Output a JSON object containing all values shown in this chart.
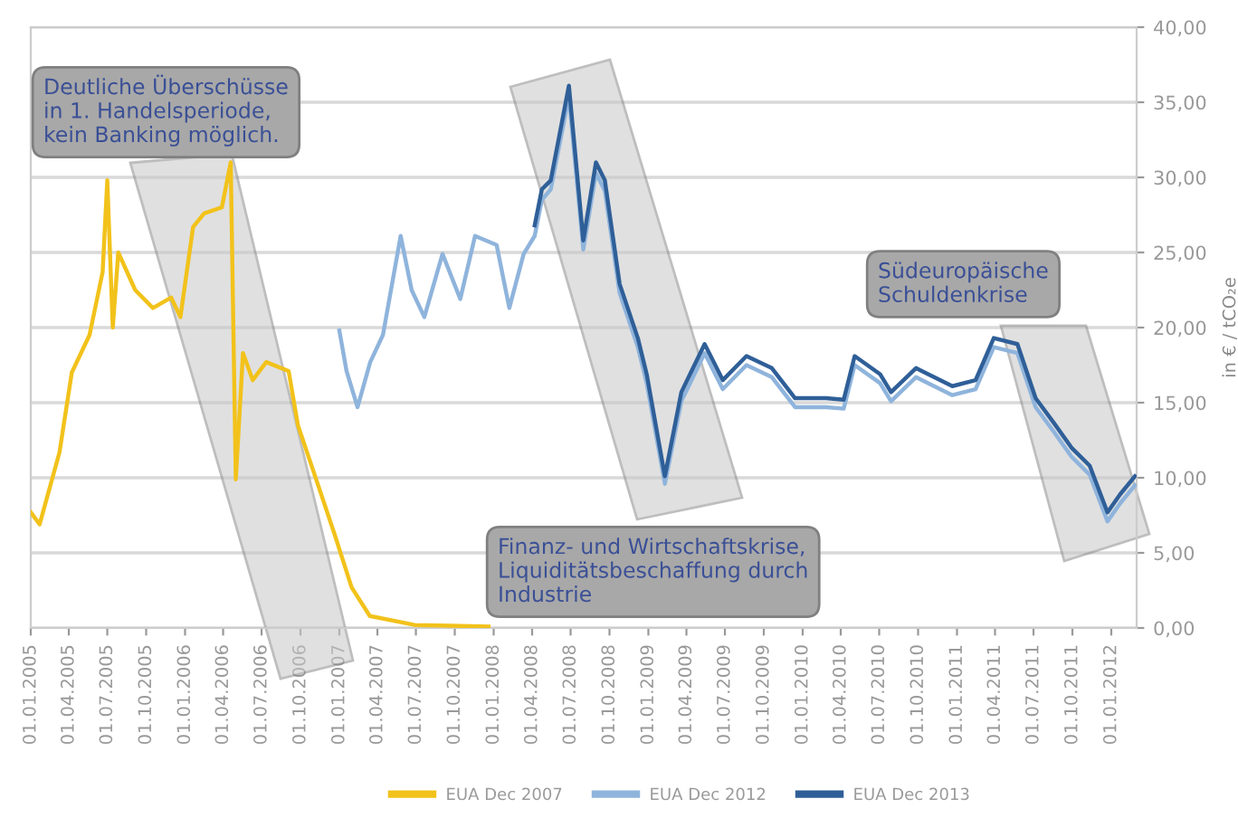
{
  "chart_data": {
    "type": "line",
    "ylabel": "in € / tCO₂e",
    "xlim": [
      "2005-01-01",
      "2012-03-01"
    ],
    "ylim": [
      0,
      40
    ],
    "yticks": [
      {
        "value": 0,
        "label": "0,00"
      },
      {
        "value": 5,
        "label": "5,00"
      },
      {
        "value": 10,
        "label": "10,00"
      },
      {
        "value": 15,
        "label": "15,00"
      },
      {
        "value": 20,
        "label": "20,00"
      },
      {
        "value": 25,
        "label": "25,00"
      },
      {
        "value": 30,
        "label": "30,00"
      },
      {
        "value": 35,
        "label": "35,00"
      },
      {
        "value": 40,
        "label": "40,00"
      }
    ],
    "xticks": [
      {
        "value": "2005-01-01",
        "label": "01.01.2005"
      },
      {
        "value": "2005-04-01",
        "label": "01.04.2005"
      },
      {
        "value": "2005-07-01",
        "label": "01.07.2005"
      },
      {
        "value": "2005-10-01",
        "label": "01.10.2005"
      },
      {
        "value": "2006-01-01",
        "label": "01.01.2006"
      },
      {
        "value": "2006-04-01",
        "label": "01.04.2006"
      },
      {
        "value": "2006-07-01",
        "label": "01.07.2006"
      },
      {
        "value": "2006-10-01",
        "label": "01.10.2006"
      },
      {
        "value": "2007-01-01",
        "label": "01.01.2007"
      },
      {
        "value": "2007-04-01",
        "label": "01.04.2007"
      },
      {
        "value": "2007-07-01",
        "label": "01.07.2007"
      },
      {
        "value": "2007-10-01",
        "label": "01.10.2007"
      },
      {
        "value": "2008-01-01",
        "label": "01.01.2008"
      },
      {
        "value": "2008-04-01",
        "label": "01.04.2008"
      },
      {
        "value": "2008-07-01",
        "label": "01.07.2008"
      },
      {
        "value": "2008-10-01",
        "label": "01.10.2008"
      },
      {
        "value": "2009-01-01",
        "label": "01.01.2009"
      },
      {
        "value": "2009-04-01",
        "label": "01.04.2009"
      },
      {
        "value": "2009-07-01",
        "label": "01.07.2009"
      },
      {
        "value": "2009-10-01",
        "label": "01.10.2009"
      },
      {
        "value": "2010-01-01",
        "label": "01.01.2010"
      },
      {
        "value": "2010-04-01",
        "label": "01.04.2010"
      },
      {
        "value": "2010-07-01",
        "label": "01.07.2010"
      },
      {
        "value": "2010-10-01",
        "label": "01.10.2010"
      },
      {
        "value": "2011-01-01",
        "label": "01.01.2011"
      },
      {
        "value": "2011-04-01",
        "label": "01.04.2011"
      },
      {
        "value": "2011-07-01",
        "label": "01.07.2011"
      },
      {
        "value": "2011-10-01",
        "label": "01.10.2011"
      },
      {
        "value": "2012-01-01",
        "label": "01.01.2012"
      }
    ],
    "grid": "y",
    "legend": "bottom",
    "line_style": "solid",
    "series": [
      {
        "name": "EUA Dec 2007",
        "color": "#f2c21b",
        "x": [
          "2005-01-01",
          "2005-01-22",
          "2005-03-10",
          "2005-04-08",
          "2005-05-20",
          "2005-06-20",
          "2005-07-01",
          "2005-07-14",
          "2005-07-27",
          "2005-09-05",
          "2005-10-17",
          "2005-11-29",
          "2005-12-21",
          "2006-01-20",
          "2006-02-15",
          "2006-03-29",
          "2006-04-19",
          "2006-05-01",
          "2006-05-18",
          "2006-06-10",
          "2006-07-12",
          "2006-09-03",
          "2006-09-25",
          "2006-11-07",
          "2006-12-20",
          "2007-01-30",
          "2007-03-14",
          "2007-06-28",
          "2007-12-20"
        ],
        "values": [
          7.7,
          6.9,
          11.7,
          17,
          19.5,
          23.7,
          29.8,
          20,
          25,
          22.5,
          21.3,
          22,
          20.7,
          26.7,
          27.6,
          28,
          31,
          9.9,
          18.3,
          16.5,
          17.7,
          17.1,
          13.5,
          9.9,
          6.3,
          2.7,
          0.8,
          0.2,
          0.1
        ]
      },
      {
        "name": "EUA Dec 2012",
        "color": "#8fb4dc",
        "x": [
          "2007-01-01",
          "2007-01-18",
          "2007-02-13",
          "2007-03-15",
          "2007-04-14",
          "2007-05-26",
          "2007-06-21",
          "2007-07-21",
          "2007-09-02",
          "2007-10-14",
          "2007-11-18",
          "2008-01-08",
          "2008-02-07",
          "2008-03-12",
          "2008-04-07",
          "2008-04-24",
          "2008-05-15",
          "2008-06-27",
          "2008-07-31",
          "2008-08-30",
          "2008-09-20",
          "2008-10-25",
          "2008-12-07",
          "2008-12-28",
          "2009-02-09",
          "2009-03-20",
          "2009-05-14",
          "2009-06-26",
          "2009-08-21",
          "2009-10-20",
          "2009-12-14",
          "2010-02-25",
          "2010-04-08",
          "2010-05-04",
          "2010-07-03",
          "2010-07-29",
          "2010-09-26",
          "2010-12-21",
          "2011-02-14",
          "2011-03-29",
          "2011-05-24",
          "2011-07-06",
          "2011-08-17",
          "2011-09-29",
          "2011-11-11",
          "2011-12-23",
          "2012-01-22",
          "2012-02-26"
        ],
        "values": [
          19.8,
          17.1,
          14.7,
          17.7,
          19.5,
          26.1,
          22.5,
          20.7,
          24.9,
          21.9,
          26.1,
          25.5,
          21.3,
          24.9,
          26.1,
          28.5,
          29.2,
          35.4,
          25.2,
          30.3,
          29.1,
          22.3,
          18.7,
          16.3,
          9.6,
          15.1,
          18.3,
          15.9,
          17.5,
          16.7,
          14.7,
          14.7,
          14.6,
          17.5,
          16.3,
          15.1,
          16.7,
          15.5,
          15.9,
          18.7,
          18.3,
          14.7,
          13.1,
          11.4,
          10.2,
          7.1,
          8.3,
          9.5
        ]
      },
      {
        "name": "EUA Dec 2013",
        "color": "#2f5f98",
        "x": [
          "2008-04-07",
          "2008-04-24",
          "2008-05-15",
          "2008-06-27",
          "2008-07-31",
          "2008-08-30",
          "2008-09-20",
          "2008-10-25",
          "2008-12-07",
          "2008-12-28",
          "2009-02-09",
          "2009-03-20",
          "2009-05-14",
          "2009-06-26",
          "2009-08-21",
          "2009-10-20",
          "2009-12-14",
          "2010-02-25",
          "2010-04-08",
          "2010-05-04",
          "2010-07-03",
          "2010-07-29",
          "2010-09-26",
          "2010-12-21",
          "2011-02-14",
          "2011-03-29",
          "2011-05-24",
          "2011-07-06",
          "2011-08-17",
          "2011-09-29",
          "2011-11-11",
          "2011-12-23",
          "2012-01-22",
          "2012-02-26"
        ],
        "values": [
          26.8,
          29.2,
          29.8,
          36.1,
          25.8,
          31.0,
          29.8,
          22.9,
          19.3,
          16.9,
          10.1,
          15.7,
          18.9,
          16.5,
          18.1,
          17.3,
          15.3,
          15.3,
          15.2,
          18.1,
          16.9,
          15.7,
          17.3,
          16.1,
          16.5,
          19.3,
          18.9,
          15.3,
          13.7,
          12.0,
          10.8,
          7.7,
          8.9,
          10.1
        ]
      }
    ],
    "annotations": [
      "Deutliche Überschüsse\nin 1. Handelsperiode,\nkein Banking möglich.",
      "Finanz- und Wirtschaftskrise,\nLiquiditätsbeschaffung durch\nIndustrie",
      "Südeuropäische\nSchuldenkrise"
    ]
  }
}
